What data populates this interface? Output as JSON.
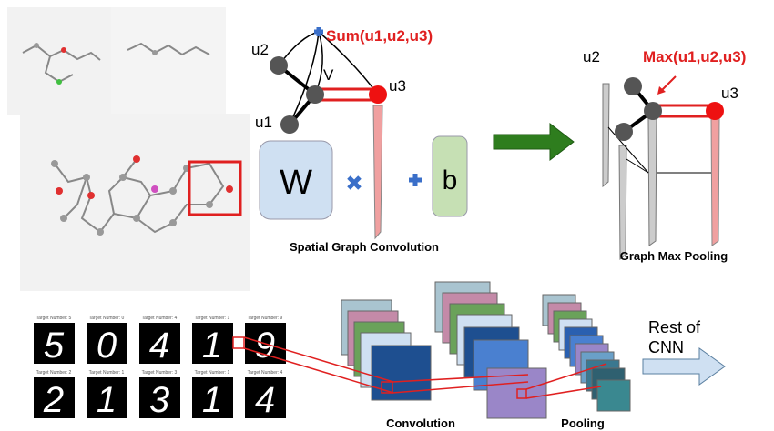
{
  "conv": {
    "sum_label": "Sum(u1,u2,u3)",
    "u2": "u2",
    "v": "V",
    "u3": "u3",
    "u1": "u1",
    "w": "W",
    "b": "b",
    "caption": "Spatial Graph Convolution"
  },
  "pool": {
    "u2": "u2",
    "max_label": "Max(u1,u2,u3)",
    "u3": "u3",
    "caption": "Graph Max Pooling"
  },
  "cnn": {
    "rest_line1": "Rest of",
    "rest_line2": "CNN",
    "conv_caption": "Convolution",
    "pool_caption": "Pooling"
  },
  "mnist": {
    "top": [
      {
        "label": "Target Number: 5",
        "digit": "5"
      },
      {
        "label": "Target Number: 0",
        "digit": "0"
      },
      {
        "label": "Target Number: 4",
        "digit": "4"
      },
      {
        "label": "Target Number: 1",
        "digit": "1"
      },
      {
        "label": "Target Number: 9",
        "digit": "9"
      }
    ],
    "bottom": [
      {
        "label": "Target Number: 2",
        "digit": "2"
      },
      {
        "label": "Target Number: 1",
        "digit": "1"
      },
      {
        "label": "Target Number: 3",
        "digit": "3"
      },
      {
        "label": "Target Number: 1",
        "digit": "1"
      },
      {
        "label": "Target Number: 4",
        "digit": "4"
      }
    ]
  }
}
